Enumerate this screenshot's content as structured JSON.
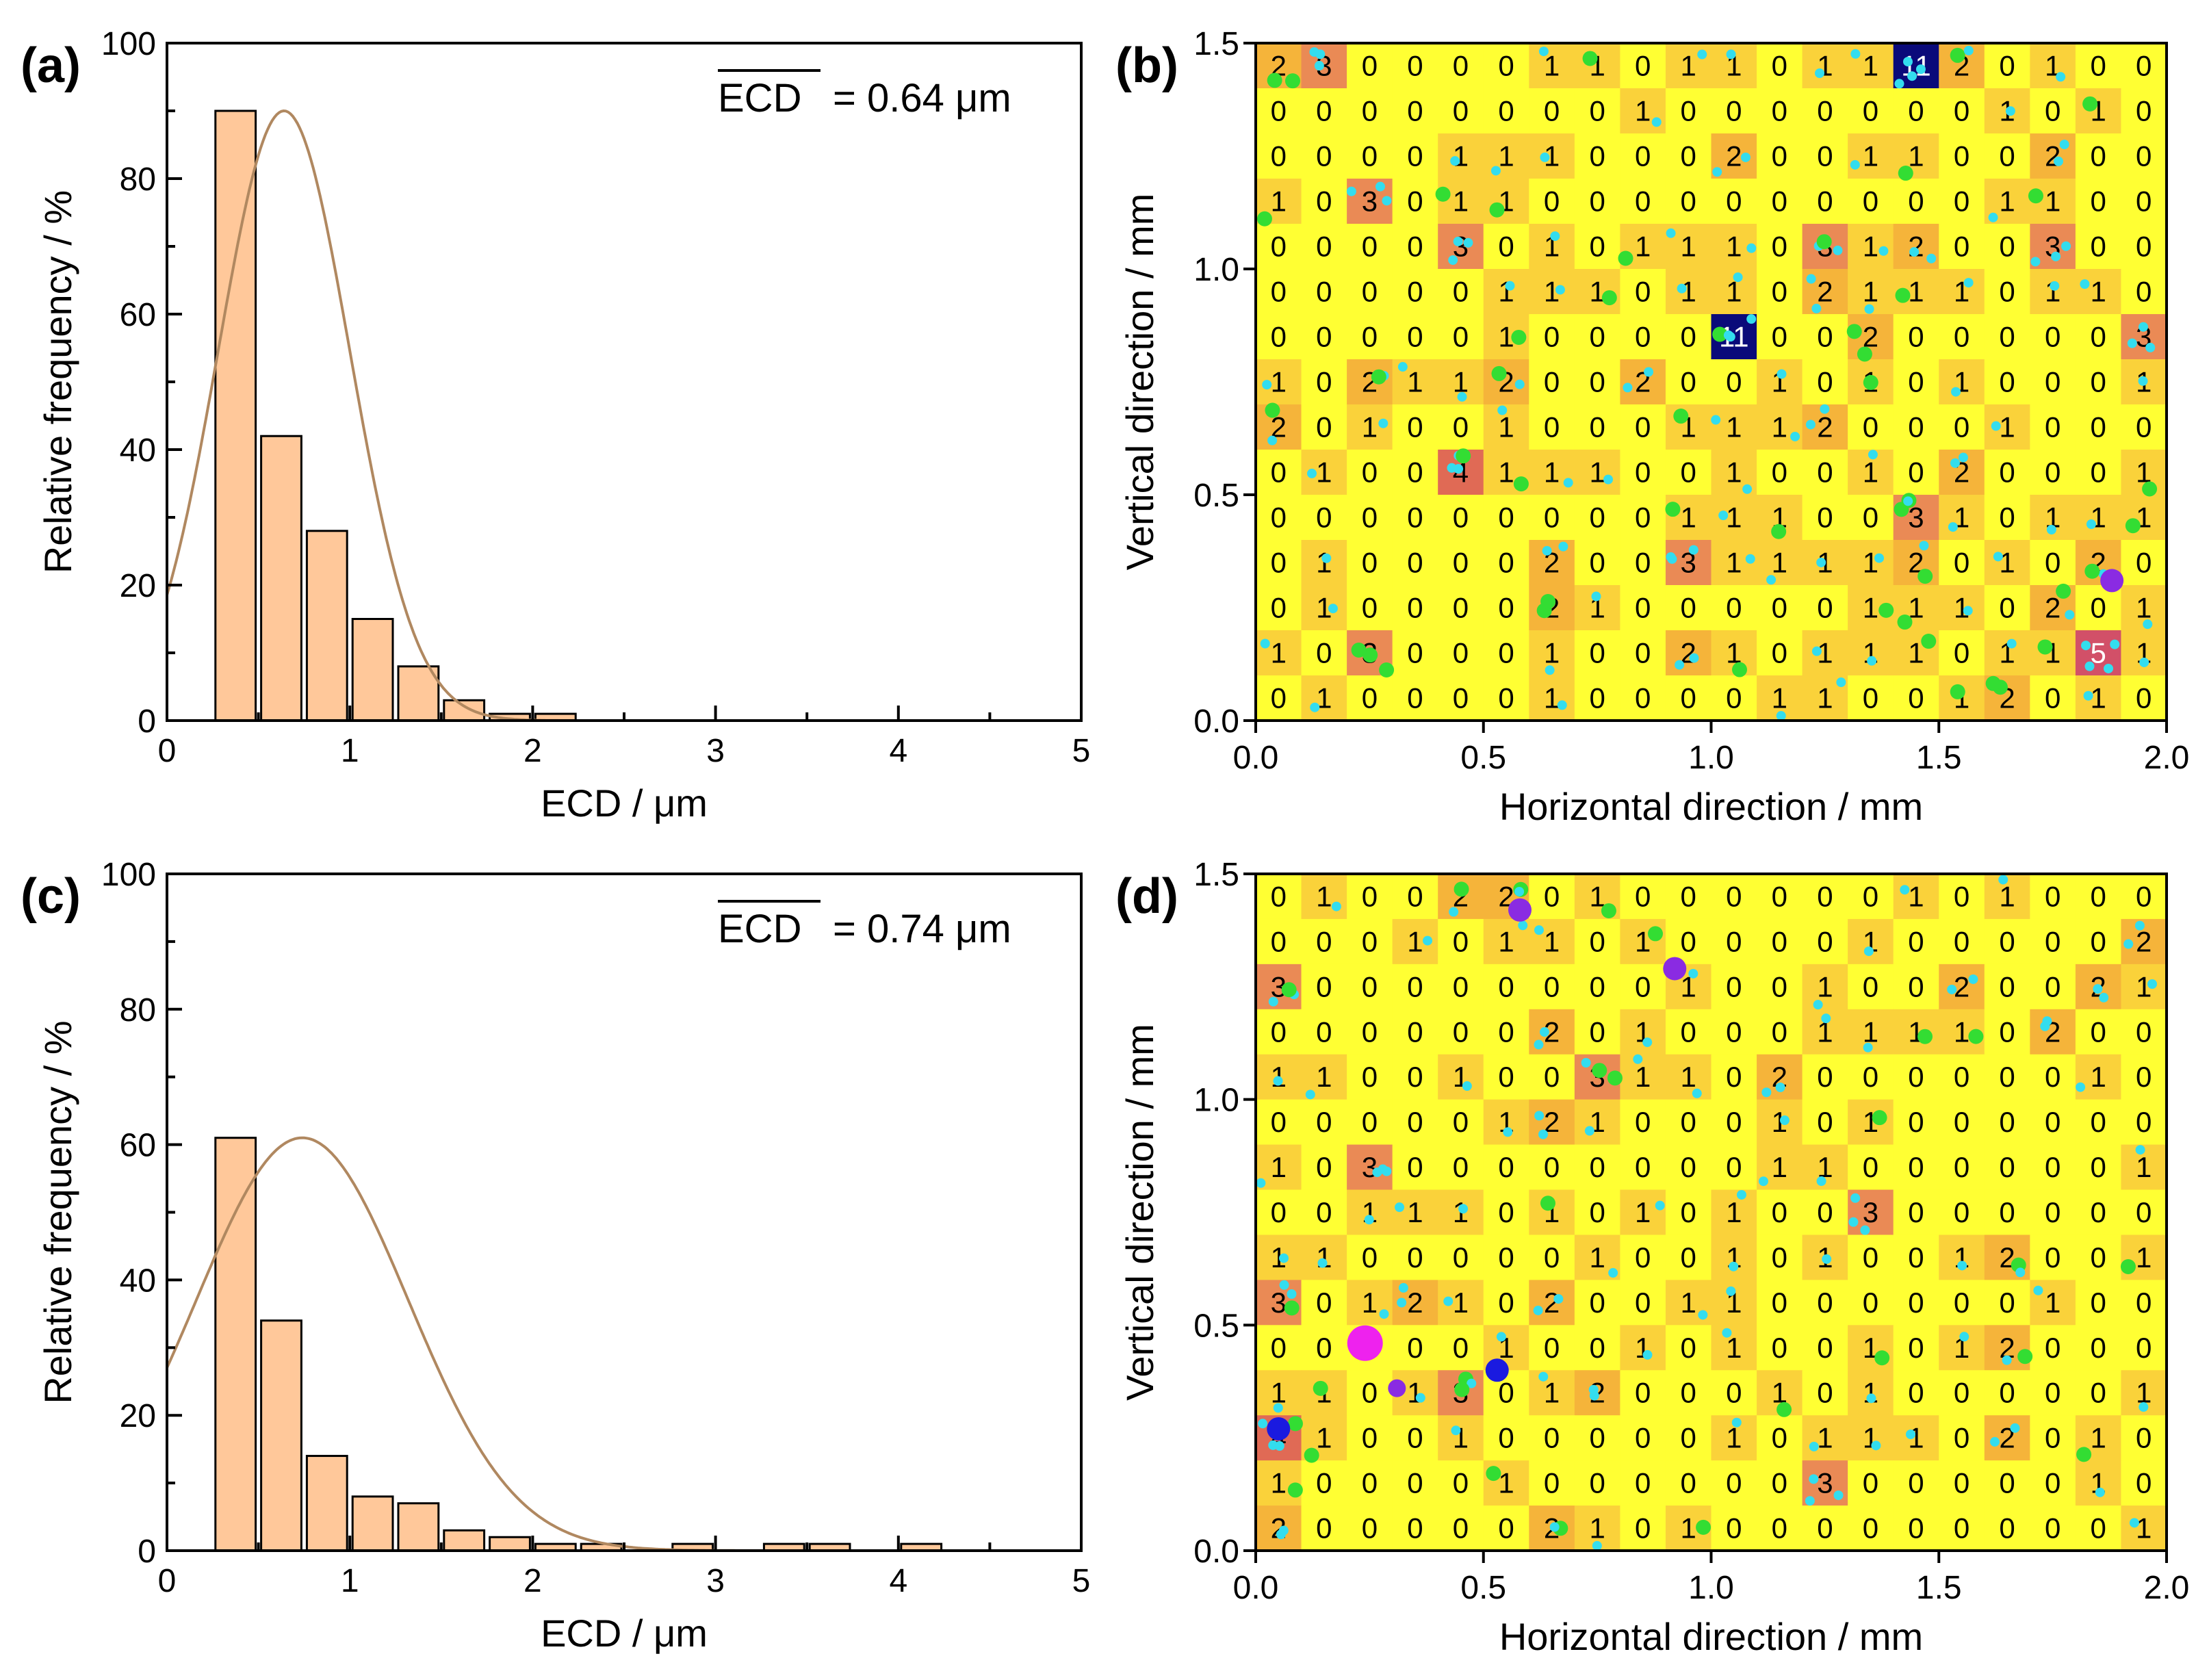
{
  "colors": {
    "bar_fill": "#FFC89A",
    "bar_stroke": "#000000",
    "fit_curve": "#B08860",
    "map_bg": "#FFFF33",
    "map_shade1": "#FAD23A",
    "map_shade2": "#F5B43A",
    "map_shade3": "#EA8A55",
    "map_shade4": "#E06A55",
    "map_shade5": "#D25068",
    "map_shade11": "#0A0A7A",
    "dot_cyan": "#33DDEE",
    "dot_green": "#33DD33",
    "dot_purple": "#8A2BE2",
    "dot_blue": "#1A1AE0",
    "dot_magenta": "#EE22EE"
  },
  "chart_data": [
    {
      "panel": "(a)",
      "type": "bar",
      "title": "",
      "annotation_bar_text": "ECD",
      "annotation_value_text": "= 0.64 μm",
      "xlabel": "ECD / μm",
      "ylabel": "Relative frequency / %",
      "xlim": [
        0,
        5
      ],
      "ylim": [
        0,
        100
      ],
      "xticks": [
        "0",
        "1",
        "2",
        "3",
        "4",
        "5"
      ],
      "yticks": [
        "0",
        "20",
        "40",
        "60",
        "80",
        "100"
      ],
      "bin_width": 0.25,
      "bin_starts": [
        0.25,
        0.5,
        0.75,
        1.0,
        1.25,
        1.5,
        1.75,
        2.0
      ],
      "values": [
        90,
        42,
        28,
        15,
        8,
        3,
        1,
        1
      ],
      "fit": {
        "type": "gaussian",
        "center": 0.64,
        "peak": 90,
        "sigma": 0.36
      }
    },
    {
      "panel": "(b)",
      "type": "heatmap",
      "xlabel": "Horizontal direction / mm",
      "ylabel": "Vertical direction / mm",
      "xlim": [
        0,
        2.0
      ],
      "ylim": [
        0,
        1.5
      ],
      "xticks": [
        "0.0",
        "0.5",
        "1.0",
        "1.5",
        "2.0"
      ],
      "yticks": [
        "0.0",
        "0.5",
        "1.0",
        "1.5"
      ],
      "cols": 20,
      "rows": 15,
      "counts": [
        [
          2,
          3,
          0,
          0,
          0,
          0,
          1,
          1,
          0,
          1,
          1,
          0,
          1,
          1,
          11,
          2,
          0,
          1,
          0,
          0
        ],
        [
          0,
          0,
          0,
          0,
          0,
          0,
          0,
          0,
          1,
          0,
          0,
          0,
          0,
          0,
          0,
          0,
          1,
          0,
          1,
          0
        ],
        [
          0,
          0,
          0,
          0,
          1,
          1,
          1,
          0,
          0,
          0,
          2,
          0,
          0,
          1,
          1,
          0,
          0,
          2,
          0,
          0
        ],
        [
          1,
          0,
          3,
          0,
          1,
          1,
          0,
          0,
          0,
          0,
          0,
          0,
          0,
          0,
          0,
          0,
          1,
          1,
          0,
          0
        ],
        [
          0,
          0,
          0,
          0,
          3,
          0,
          1,
          0,
          1,
          1,
          1,
          0,
          3,
          1,
          2,
          0,
          0,
          3,
          0,
          0
        ],
        [
          0,
          0,
          0,
          0,
          0,
          1,
          1,
          1,
          0,
          1,
          1,
          0,
          2,
          1,
          1,
          1,
          0,
          1,
          1,
          0
        ],
        [
          0,
          0,
          0,
          0,
          0,
          1,
          0,
          0,
          0,
          0,
          11,
          0,
          0,
          2,
          0,
          0,
          0,
          0,
          0,
          3
        ],
        [
          1,
          0,
          2,
          1,
          1,
          2,
          0,
          0,
          2,
          0,
          0,
          1,
          0,
          1,
          0,
          1,
          0,
          0,
          0,
          1
        ],
        [
          2,
          0,
          1,
          0,
          0,
          1,
          0,
          0,
          0,
          1,
          1,
          1,
          2,
          0,
          0,
          0,
          1,
          0,
          0,
          0
        ],
        [
          0,
          1,
          0,
          0,
          4,
          1,
          1,
          1,
          0,
          0,
          1,
          0,
          0,
          1,
          0,
          2,
          0,
          0,
          0,
          1
        ],
        [
          0,
          0,
          0,
          0,
          0,
          0,
          0,
          0,
          0,
          1,
          1,
          1,
          0,
          0,
          3,
          1,
          0,
          1,
          1,
          1
        ],
        [
          0,
          1,
          0,
          0,
          0,
          0,
          2,
          0,
          0,
          3,
          1,
          1,
          1,
          1,
          2,
          0,
          1,
          0,
          2,
          0
        ],
        [
          0,
          1,
          0,
          0,
          0,
          0,
          2,
          1,
          0,
          0,
          0,
          0,
          0,
          1,
          1,
          1,
          0,
          2,
          0,
          1
        ],
        [
          1,
          0,
          3,
          0,
          0,
          0,
          1,
          0,
          0,
          2,
          1,
          0,
          1,
          1,
          1,
          0,
          1,
          1,
          5,
          1
        ],
        [
          0,
          1,
          0,
          0,
          0,
          0,
          1,
          0,
          0,
          0,
          0,
          1,
          1,
          0,
          0,
          1,
          2,
          0,
          1,
          0
        ]
      ],
      "large_particles": [
        {
          "x": 1.88,
          "y": 0.31,
          "size": "medium",
          "color": "purple"
        }
      ]
    },
    {
      "panel": "(c)",
      "type": "bar",
      "title": "",
      "annotation_bar_text": "ECD",
      "annotation_value_text": "= 0.74 μm",
      "xlabel": "ECD / μm",
      "ylabel": "Relative frequency / %",
      "xlim": [
        0,
        5
      ],
      "ylim": [
        0,
        100
      ],
      "xticks": [
        "0",
        "1",
        "2",
        "3",
        "4",
        "5"
      ],
      "yticks": [
        "0",
        "20",
        "40",
        "60",
        "80",
        "100"
      ],
      "bin_width": 0.25,
      "bin_starts": [
        0.25,
        0.5,
        0.75,
        1.0,
        1.25,
        1.5,
        1.75,
        2.0,
        2.25,
        2.5,
        2.75,
        3.25,
        3.5,
        4.0
      ],
      "values": [
        61,
        34,
        14,
        8,
        7,
        3,
        2,
        1,
        1,
        0,
        1,
        1,
        1,
        1
      ],
      "fit": {
        "type": "gaussian",
        "center": 0.74,
        "peak": 61,
        "sigma": 0.58
      }
    },
    {
      "panel": "(d)",
      "type": "heatmap",
      "xlabel": "Horizontal direction / mm",
      "ylabel": "Vertical direction / mm",
      "xlim": [
        0,
        2.0
      ],
      "ylim": [
        0,
        1.5
      ],
      "xticks": [
        "0.0",
        "0.5",
        "1.0",
        "1.5",
        "2.0"
      ],
      "yticks": [
        "0.0",
        "0.5",
        "1.0",
        "1.5"
      ],
      "cols": 20,
      "rows": 15,
      "counts": [
        [
          0,
          1,
          0,
          0,
          2,
          2,
          0,
          1,
          0,
          0,
          0,
          0,
          0,
          0,
          1,
          0,
          1,
          0,
          0,
          0
        ],
        [
          0,
          0,
          0,
          1,
          0,
          1,
          1,
          0,
          1,
          0,
          0,
          0,
          0,
          1,
          0,
          0,
          0,
          0,
          0,
          2
        ],
        [
          3,
          0,
          0,
          0,
          0,
          0,
          0,
          0,
          0,
          1,
          0,
          0,
          1,
          0,
          0,
          2,
          0,
          0,
          2,
          1
        ],
        [
          0,
          0,
          0,
          0,
          0,
          0,
          2,
          0,
          1,
          0,
          0,
          0,
          1,
          1,
          1,
          1,
          0,
          2,
          0,
          0
        ],
        [
          1,
          1,
          0,
          0,
          1,
          0,
          0,
          3,
          1,
          1,
          0,
          2,
          0,
          0,
          0,
          0,
          0,
          0,
          1,
          0
        ],
        [
          0,
          0,
          0,
          0,
          0,
          1,
          2,
          1,
          0,
          0,
          0,
          1,
          0,
          1,
          0,
          0,
          0,
          0,
          0,
          0
        ],
        [
          1,
          0,
          3,
          0,
          0,
          0,
          0,
          0,
          0,
          0,
          0,
          1,
          1,
          0,
          0,
          0,
          0,
          0,
          0,
          1
        ],
        [
          0,
          0,
          1,
          1,
          1,
          0,
          1,
          0,
          1,
          0,
          1,
          0,
          0,
          3,
          0,
          0,
          0,
          0,
          0,
          0
        ],
        [
          1,
          1,
          0,
          0,
          0,
          0,
          0,
          1,
          0,
          0,
          1,
          0,
          1,
          0,
          0,
          1,
          2,
          0,
          0,
          1
        ],
        [
          3,
          0,
          1,
          2,
          1,
          0,
          2,
          0,
          0,
          1,
          1,
          0,
          0,
          0,
          0,
          0,
          0,
          1,
          0,
          0
        ],
        [
          0,
          0,
          0,
          0,
          0,
          1,
          0,
          0,
          1,
          0,
          1,
          0,
          0,
          1,
          0,
          1,
          2,
          0,
          0,
          0
        ],
        [
          1,
          1,
          0,
          1,
          3,
          0,
          1,
          2,
          0,
          0,
          0,
          1,
          0,
          1,
          0,
          0,
          0,
          0,
          0,
          1
        ],
        [
          4,
          1,
          0,
          0,
          1,
          0,
          0,
          0,
          0,
          0,
          1,
          0,
          1,
          1,
          1,
          0,
          2,
          0,
          1,
          0
        ],
        [
          1,
          0,
          0,
          0,
          0,
          1,
          0,
          0,
          0,
          0,
          0,
          0,
          3,
          0,
          0,
          0,
          0,
          0,
          1,
          0
        ],
        [
          2,
          0,
          0,
          0,
          0,
          0,
          2,
          1,
          0,
          1,
          0,
          0,
          0,
          0,
          0,
          0,
          0,
          0,
          0,
          1
        ]
      ],
      "large_particles": [
        {
          "x": 0.58,
          "y": 1.42,
          "size": "medium",
          "color": "purple"
        },
        {
          "x": 0.92,
          "y": 1.29,
          "size": "medium",
          "color": "purple"
        },
        {
          "x": 0.24,
          "y": 0.46,
          "size": "large",
          "color": "magenta"
        },
        {
          "x": 0.53,
          "y": 0.4,
          "size": "medium",
          "color": "blue"
        },
        {
          "x": 0.31,
          "y": 0.36,
          "size": "small",
          "color": "purple"
        },
        {
          "x": 0.05,
          "y": 0.27,
          "size": "medium",
          "color": "blue"
        }
      ]
    }
  ]
}
